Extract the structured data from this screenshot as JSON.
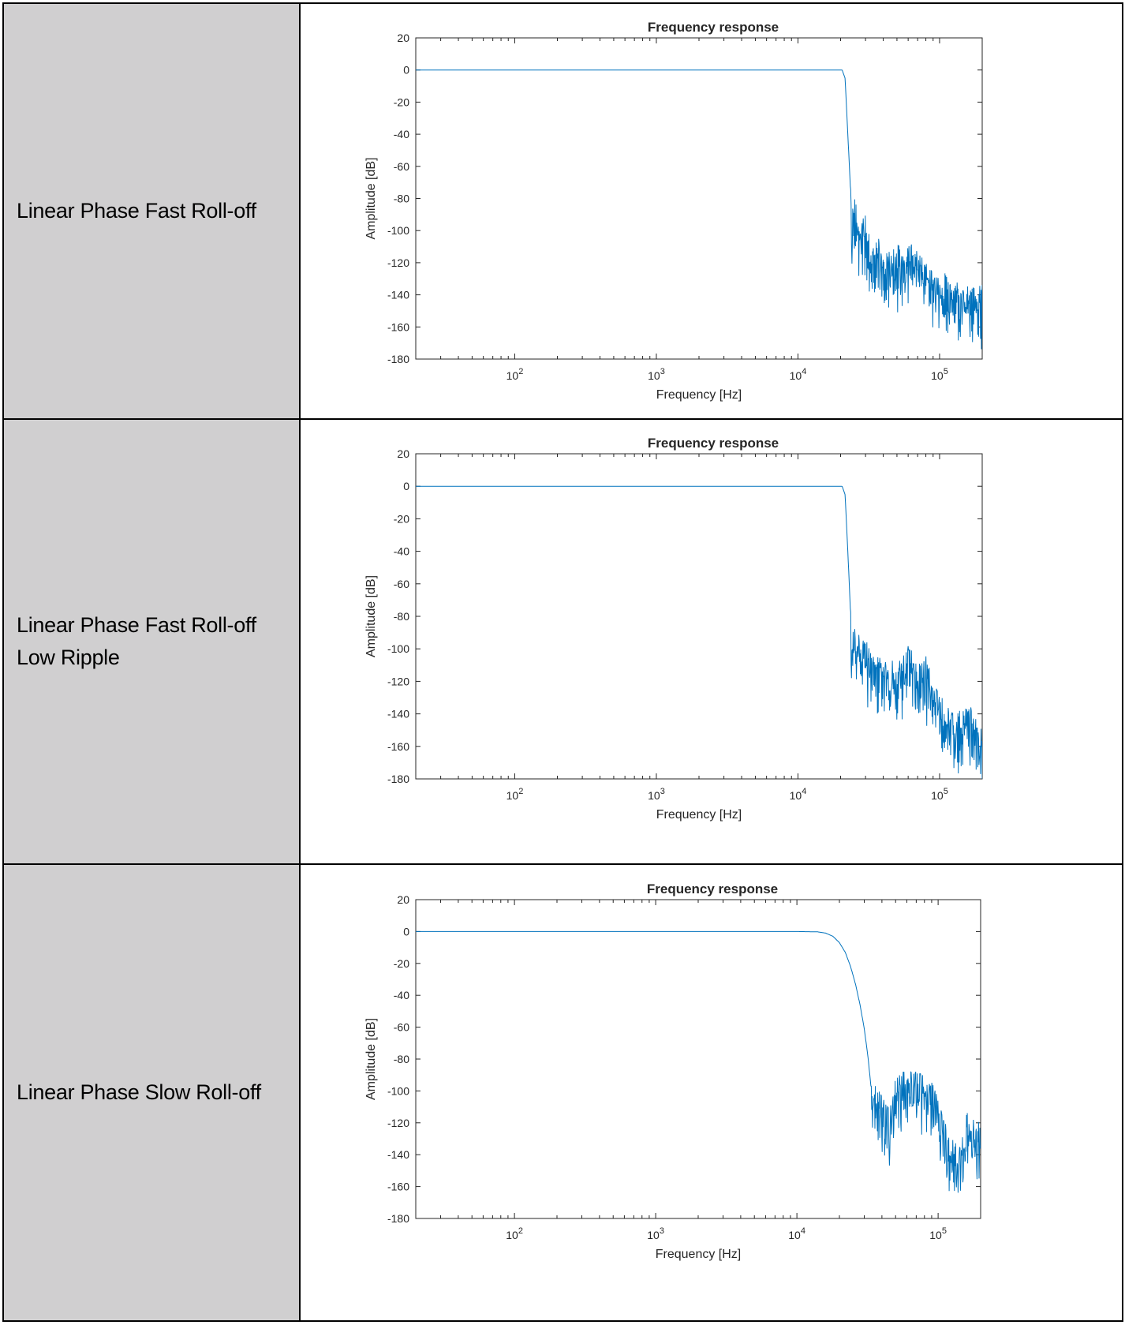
{
  "rows": [
    {
      "filter_name": "Linear Phase Fast Roll-off"
    },
    {
      "filter_name": "Linear Phase Fast Roll-off\nLow Ripple"
    },
    {
      "filter_name": "Linear Phase Slow Roll-off"
    }
  ],
  "colors": {
    "series": "#0072bd",
    "label_cell_bg": "#d0cfd0",
    "axes": "#262626"
  },
  "chart_data": [
    {
      "type": "line",
      "title": "Frequency response",
      "xlabel": "Frequency [Hz]",
      "ylabel": "Amplitude [dB]",
      "xscale": "log",
      "xlim": [
        20,
        200000
      ],
      "ylim": [
        -180,
        20
      ],
      "xticks": [
        100,
        1000,
        10000,
        100000
      ],
      "xtick_labels": [
        {
          "base": "10",
          "exp": "2"
        },
        {
          "base": "10",
          "exp": "3"
        },
        {
          "base": "10",
          "exp": "4"
        },
        {
          "base": "10",
          "exp": "5"
        }
      ],
      "yticks": [
        20,
        0,
        -20,
        -40,
        -60,
        -80,
        -100,
        -120,
        -140,
        -160,
        -180
      ],
      "grid": false,
      "series": [
        {
          "x": [
            20,
            1000,
            10000,
            19000,
            20500,
            21500,
            22500,
            23500,
            24000,
            24300,
            25000,
            26500,
            28000,
            30000,
            33000,
            37000,
            42000,
            50000,
            58000,
            62000,
            70000,
            80000,
            100000,
            120000,
            150000,
            200000
          ],
          "y": [
            0,
            0,
            0,
            0,
            0,
            -5,
            -40,
            -75,
            -105,
            -88,
            -85,
            -90,
            -100,
            -96,
            -112,
            -108,
            -118,
            -115,
            -114,
            -110,
            -120,
            -125,
            -130,
            -135,
            -140,
            -138
          ]
        }
      ]
    },
    {
      "type": "line",
      "title": "Frequency response",
      "xlabel": "Frequency [Hz]",
      "ylabel": "Amplitude [dB]",
      "xscale": "log",
      "xlim": [
        20,
        200000
      ],
      "ylim": [
        -180,
        20
      ],
      "xticks": [
        100,
        1000,
        10000,
        100000
      ],
      "xtick_labels": [
        {
          "base": "10",
          "exp": "2"
        },
        {
          "base": "10",
          "exp": "3"
        },
        {
          "base": "10",
          "exp": "4"
        },
        {
          "base": "10",
          "exp": "5"
        }
      ],
      "yticks": [
        20,
        0,
        -20,
        -40,
        -60,
        -80,
        -100,
        -120,
        -140,
        -160,
        -180
      ],
      "grid": false,
      "series": [
        {
          "x": [
            20,
            1000,
            10000,
            19000,
            20500,
            21500,
            22500,
            23500,
            24000,
            24300,
            26000,
            30000,
            35000,
            40000,
            50000,
            60000,
            70000,
            80000,
            90000,
            110000,
            130000,
            160000,
            200000
          ],
          "y": [
            0,
            0,
            0,
            0,
            0,
            -5,
            -40,
            -78,
            -100,
            -90,
            -95,
            -100,
            -112,
            -108,
            -115,
            -100,
            -115,
            -110,
            -125,
            -140,
            -145,
            -140,
            -150
          ]
        }
      ]
    },
    {
      "type": "line",
      "title": "Frequency response",
      "xlabel": "Frequency [Hz]",
      "ylabel": "Amplitude [dB]",
      "xscale": "log",
      "xlim": [
        20,
        200000
      ],
      "ylim": [
        -180,
        20
      ],
      "xticks": [
        100,
        1000,
        10000,
        100000
      ],
      "xtick_labels": [
        {
          "base": "10",
          "exp": "2"
        },
        {
          "base": "10",
          "exp": "3"
        },
        {
          "base": "10",
          "exp": "4"
        },
        {
          "base": "10",
          "exp": "5"
        }
      ],
      "yticks": [
        20,
        0,
        -20,
        -40,
        -60,
        -80,
        -100,
        -120,
        -140,
        -160,
        -180
      ],
      "grid": false,
      "series": [
        {
          "x": [
            20,
            1000,
            10000,
            14000,
            16000,
            18000,
            20000,
            22000,
            24000,
            26000,
            28000,
            30000,
            32000,
            33500,
            34500,
            36000,
            40000,
            45000,
            50000,
            60000,
            70000,
            80000,
            90000,
            100000,
            120000,
            140000,
            160000,
            200000
          ],
          "y": [
            0,
            0,
            0,
            -0.2,
            -1,
            -3,
            -7,
            -13,
            -22,
            -33,
            -46,
            -61,
            -80,
            -98,
            -110,
            -100,
            -108,
            -115,
            -98,
            -92,
            -94,
            -95,
            -100,
            -110,
            -135,
            -138,
            -118,
            -125
          ]
        }
      ]
    }
  ]
}
